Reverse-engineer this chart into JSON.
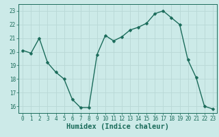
{
  "x": [
    0,
    1,
    2,
    3,
    4,
    5,
    6,
    7,
    8,
    9,
    10,
    11,
    12,
    13,
    14,
    15,
    16,
    17,
    18,
    19,
    20,
    21,
    22,
    23
  ],
  "y": [
    20.1,
    19.9,
    21.0,
    19.2,
    18.5,
    18.0,
    16.5,
    15.9,
    15.9,
    19.8,
    21.2,
    20.8,
    21.1,
    21.6,
    21.8,
    22.1,
    22.8,
    23.0,
    22.5,
    22.0,
    19.4,
    18.1,
    16.0,
    15.8
  ],
  "xlabel": "Humidex (Indice chaleur)",
  "line_color": "#1a6b5a",
  "bg_color": "#cceae8",
  "grid_color": "#b8d8d6",
  "xlim": [
    -0.5,
    23.5
  ],
  "ylim": [
    15.5,
    23.5
  ],
  "yticks": [
    16,
    17,
    18,
    19,
    20,
    21,
    22,
    23
  ],
  "xticks": [
    0,
    1,
    2,
    3,
    4,
    5,
    6,
    7,
    8,
    9,
    10,
    11,
    12,
    13,
    14,
    15,
    16,
    17,
    18,
    19,
    20,
    21,
    22,
    23
  ],
  "marker_size": 2.5,
  "line_width": 1.0,
  "tick_label_fontsize": 5.5,
  "xlabel_fontsize": 7.5
}
